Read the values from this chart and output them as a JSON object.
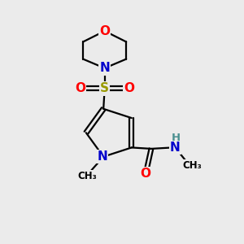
{
  "bg_color": "#ebebeb",
  "atom_colors": {
    "C": "#000000",
    "N": "#0000cc",
    "O": "#ff0000",
    "S": "#999900",
    "H": "#4a9090"
  },
  "bond_color": "#000000",
  "bond_width": 1.6,
  "font_size_atoms": 11,
  "font_size_small": 9,
  "font_size_H": 9.5
}
